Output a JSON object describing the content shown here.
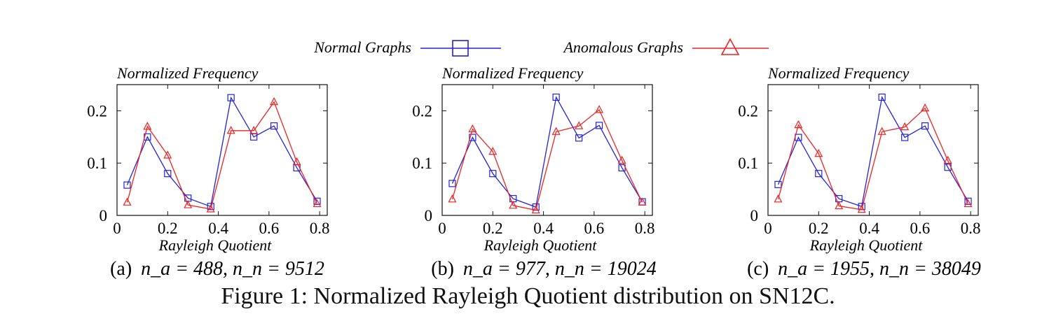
{
  "legend": {
    "normal_label": "Normal Graphs",
    "anomalous_label": "Anomalous Graphs",
    "normal_color": "#2222dd",
    "anomalous_color": "#ee2222",
    "normal_marker": "square-marker",
    "anomalous_marker": "triangle-marker"
  },
  "figure_caption": "Figure 1: Normalized Rayleigh Quotient distribution on SN12C.",
  "chart_data": [
    {
      "type": "line",
      "panel_label": "(a)",
      "caption_math": "n_a = 488, n_n = 9512",
      "ylabel": "Normalized Frequency",
      "xlabel": "Rayleigh Quotient",
      "xlim": [
        0,
        0.83
      ],
      "ylim": [
        0,
        0.25
      ],
      "xticks": [
        "0",
        "0.2",
        "0.4",
        "0.6",
        "0.8"
      ],
      "yticks": [
        "0",
        "0.1",
        "0.2"
      ],
      "x": [
        0.04,
        0.12,
        0.2,
        0.28,
        0.37,
        0.45,
        0.54,
        0.62,
        0.71,
        0.79
      ],
      "series": [
        {
          "name": "Normal Graphs",
          "marker": "square",
          "color": "#2222dd",
          "values": [
            0.058,
            0.15,
            0.08,
            0.033,
            0.017,
            0.225,
            0.15,
            0.171,
            0.091,
            0.027
          ]
        },
        {
          "name": "Anomalous Graphs",
          "marker": "triangle",
          "color": "#ee2222",
          "values": [
            0.025,
            0.17,
            0.115,
            0.02,
            0.012,
            0.162,
            0.162,
            0.217,
            0.102,
            0.022
          ]
        }
      ]
    },
    {
      "type": "line",
      "panel_label": "(b)",
      "caption_math": "n_a = 977, n_n = 19024",
      "ylabel": "Normalized Frequency",
      "xlabel": "Rayleigh Quotient",
      "xlim": [
        0,
        0.83
      ],
      "ylim": [
        0,
        0.25
      ],
      "xticks": [
        "0",
        "0.2",
        "0.4",
        "0.6",
        "0.8"
      ],
      "yticks": [
        "0",
        "0.1",
        "0.2"
      ],
      "x": [
        0.04,
        0.12,
        0.2,
        0.28,
        0.37,
        0.45,
        0.54,
        0.62,
        0.71,
        0.79
      ],
      "series": [
        {
          "name": "Normal Graphs",
          "marker": "square",
          "color": "#2222dd",
          "values": [
            0.061,
            0.149,
            0.08,
            0.032,
            0.016,
            0.226,
            0.148,
            0.172,
            0.091,
            0.026
          ]
        },
        {
          "name": "Anomalous Graphs",
          "marker": "triangle",
          "color": "#ee2222",
          "values": [
            0.031,
            0.165,
            0.122,
            0.019,
            0.01,
            0.16,
            0.171,
            0.202,
            0.105,
            0.025
          ]
        }
      ]
    },
    {
      "type": "line",
      "panel_label": "(c)",
      "caption_math": "n_a = 1955, n_n = 38049",
      "ylabel": "Normalized Frequency",
      "xlabel": "Rayleigh Quotient",
      "xlim": [
        0,
        0.83
      ],
      "ylim": [
        0,
        0.25
      ],
      "xticks": [
        "0",
        "0.2",
        "0.4",
        "0.6",
        "0.8"
      ],
      "yticks": [
        "0",
        "0.1",
        "0.2"
      ],
      "x": [
        0.04,
        0.12,
        0.2,
        0.28,
        0.37,
        0.45,
        0.54,
        0.62,
        0.71,
        0.79
      ],
      "series": [
        {
          "name": "Normal Graphs",
          "marker": "square",
          "color": "#2222dd",
          "values": [
            0.059,
            0.149,
            0.08,
            0.032,
            0.017,
            0.226,
            0.149,
            0.171,
            0.092,
            0.027
          ]
        },
        {
          "name": "Anomalous Graphs",
          "marker": "triangle",
          "color": "#ee2222",
          "values": [
            0.031,
            0.173,
            0.118,
            0.018,
            0.011,
            0.16,
            0.169,
            0.205,
            0.105,
            0.022
          ]
        }
      ]
    }
  ]
}
